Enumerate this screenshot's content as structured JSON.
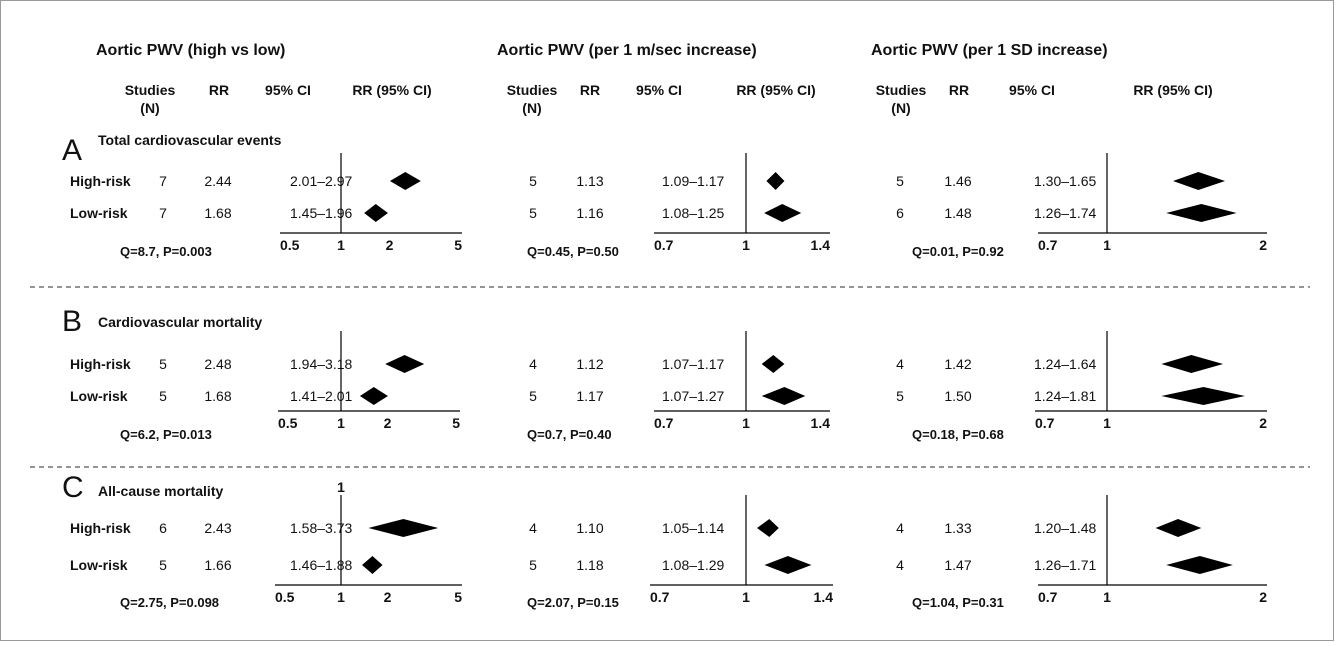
{
  "chart_data": {
    "type": "forest",
    "columns": [
      {
        "title": "Aortic PWV (high vs low)",
        "headers": {
          "studies": "Studies",
          "studies_sub": "(N)",
          "rr": "RR",
          "ci": "95% CI",
          "plot": "RR (95% CI)"
        },
        "scale": "log",
        "ticks": [
          "0.5",
          "1",
          "2",
          "5"
        ]
      },
      {
        "title": "Aortic PWV (per 1 m/sec increase)",
        "headers": {
          "studies": "Studies",
          "studies_sub": "(N)",
          "rr": "RR",
          "ci": "95% CI",
          "plot": "RR (95% CI)"
        },
        "scale": "log",
        "ticks": [
          "0.7",
          "1",
          "1.4"
        ]
      },
      {
        "title": "Aortic PWV (per 1 SD increase)",
        "headers": {
          "studies": "Studies",
          "studies_sub": "(N)",
          "rr": "RR",
          "ci": "95% CI",
          "plot": "RR (95% CI)"
        },
        "scale": "log",
        "ticks": [
          "0.7",
          "1",
          "2"
        ]
      }
    ],
    "panels": [
      {
        "letter": "A",
        "title": "Total cardiovascular events",
        "rows": [
          "High-risk",
          "Low-risk"
        ],
        "cells": [
          {
            "q": "Q=8.7, P=0.003",
            "rows": [
              {
                "n": "7",
                "rr": "2.44",
                "ci": "2.01–2.97",
                "rr_value": 2.44,
                "lo": 2.01,
                "hi": 2.97
              },
              {
                "n": "7",
                "rr": "1.68",
                "ci": "1.45–1.96",
                "rr_value": 1.68,
                "lo": 1.45,
                "hi": 1.96
              }
            ]
          },
          {
            "q": "Q=0.45, P=0.50",
            "rows": [
              {
                "n": "5",
                "rr": "1.13",
                "ci": "1.09–1.17",
                "rr_value": 1.13,
                "lo": 1.09,
                "hi": 1.17
              },
              {
                "n": "5",
                "rr": "1.16",
                "ci": "1.08–1.25",
                "rr_value": 1.16,
                "lo": 1.08,
                "hi": 1.25
              }
            ]
          },
          {
            "q": "Q=0.01, P=0.92",
            "rows": [
              {
                "n": "5",
                "rr": "1.46",
                "ci": "1.30–1.65",
                "rr_value": 1.46,
                "lo": 1.3,
                "hi": 1.65
              },
              {
                "n": "6",
                "rr": "1.48",
                "ci": "1.26–1.74",
                "rr_value": 1.48,
                "lo": 1.26,
                "hi": 1.74
              }
            ]
          }
        ]
      },
      {
        "letter": "B",
        "title": "Cardiovascular mortality",
        "rows": [
          "High-risk",
          "Low-risk"
        ],
        "cells": [
          {
            "q": "Q=6.2, P=0.013",
            "rows": [
              {
                "n": "5",
                "rr": "2.48",
                "ci": "1.94–3.18",
                "rr_value": 2.48,
                "lo": 1.94,
                "hi": 3.18
              },
              {
                "n": "5",
                "rr": "1.68",
                "ci": "1.41–2.01",
                "rr_value": 1.68,
                "lo": 1.41,
                "hi": 2.01
              }
            ]
          },
          {
            "q": "Q=0.7, P=0.40",
            "rows": [
              {
                "n": "4",
                "rr": "1.12",
                "ci": "1.07–1.17",
                "rr_value": 1.12,
                "lo": 1.07,
                "hi": 1.17
              },
              {
                "n": "5",
                "rr": "1.17",
                "ci": "1.07–1.27",
                "rr_value": 1.17,
                "lo": 1.07,
                "hi": 1.27
              }
            ]
          },
          {
            "q": "Q=0.18, P=0.68",
            "rows": [
              {
                "n": "4",
                "rr": "1.42",
                "ci": "1.24–1.64",
                "rr_value": 1.42,
                "lo": 1.24,
                "hi": 1.64
              },
              {
                "n": "5",
                "rr": "1.50",
                "ci": "1.24–1.81",
                "rr_value": 1.5,
                "lo": 1.24,
                "hi": 1.81
              }
            ]
          }
        ]
      },
      {
        "letter": "C",
        "title": "All-cause mortality",
        "rows": [
          "High-risk",
          "Low-risk"
        ],
        "cells": [
          {
            "q": "Q=2.75, P=0.098",
            "rows": [
              {
                "n": "6",
                "rr": "2.43",
                "ci": "1.58–3.73",
                "rr_value": 2.43,
                "lo": 1.58,
                "hi": 3.73
              },
              {
                "n": "5",
                "rr": "1.66",
                "ci": "1.46–1.88",
                "rr_value": 1.66,
                "lo": 1.46,
                "hi": 1.88
              }
            ]
          },
          {
            "q": "Q=2.07, P=0.15",
            "rows": [
              {
                "n": "4",
                "rr": "1.10",
                "ci": "1.05–1.14",
                "rr_value": 1.1,
                "lo": 1.05,
                "hi": 1.14
              },
              {
                "n": "5",
                "rr": "1.18",
                "ci": "1.08–1.29",
                "rr_value": 1.18,
                "lo": 1.08,
                "hi": 1.29
              }
            ]
          },
          {
            "q": "Q=1.04, P=0.31",
            "rows": [
              {
                "n": "4",
                "rr": "1.33",
                "ci": "1.20–1.48",
                "rr_value": 1.33,
                "lo": 1.2,
                "hi": 1.48
              },
              {
                "n": "4",
                "rr": "1.47",
                "ci": "1.26–1.71",
                "rr_value": 1.47,
                "lo": 1.26,
                "hi": 1.71
              }
            ]
          }
        ]
      }
    ],
    "panel_c_stray_label": "1"
  }
}
